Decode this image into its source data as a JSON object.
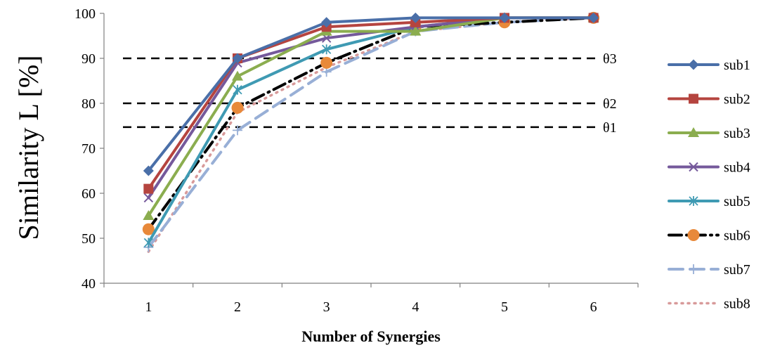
{
  "chart_data": {
    "type": "line",
    "ylabel": "Similarity L [%]",
    "xlabel": "Number of Synergies",
    "x": [
      1,
      2,
      3,
      4,
      5,
      6
    ],
    "xlim": [
      0.5,
      6.5
    ],
    "ylim": [
      40,
      100
    ],
    "yticks": [
      40,
      50,
      60,
      70,
      80,
      90,
      100
    ],
    "xticks": [
      "1",
      "2",
      "3",
      "4",
      "5",
      "6"
    ],
    "legend_position": "right",
    "grid": false,
    "thresholds": [
      {
        "label": "θ3",
        "value": 90
      },
      {
        "label": "θ2",
        "value": 80
      },
      {
        "label": "θ1",
        "value": 74.7
      }
    ],
    "series": [
      {
        "name": "sub1",
        "color": "#4a6fa8",
        "marker": "diamond",
        "line": "solid",
        "values": [
          65,
          90,
          98,
          99,
          99,
          99
        ]
      },
      {
        "name": "sub2",
        "color": "#b5443f",
        "marker": "square",
        "line": "solid",
        "values": [
          61,
          90,
          97,
          98,
          99,
          99
        ]
      },
      {
        "name": "sub3",
        "color": "#8bad4f",
        "marker": "triangle",
        "line": "solid",
        "values": [
          55,
          86,
          96,
          96,
          99,
          99
        ]
      },
      {
        "name": "sub4",
        "color": "#75599b",
        "marker": "x",
        "line": "solid",
        "values": [
          59,
          89,
          94.5,
          97,
          99,
          99
        ]
      },
      {
        "name": "sub5",
        "color": "#3f9ab3",
        "marker": "asterisk",
        "line": "solid",
        "values": [
          49,
          83,
          92,
          97,
          99,
          99
        ]
      },
      {
        "name": "sub6",
        "color": "#000000",
        "marker": "circle",
        "markerColor": "#e8893a",
        "line": "dashdot",
        "values": [
          52,
          79,
          89,
          97,
          98,
          99
        ]
      },
      {
        "name": "sub7",
        "color": "#98afd6",
        "marker": "plus",
        "line": "dashed",
        "values": [
          48,
          74,
          87,
          96,
          98,
          99
        ]
      },
      {
        "name": "sub8",
        "color": "#d89a9a",
        "marker": "none",
        "line": "dotted",
        "values": [
          47,
          78,
          88,
          96,
          98,
          99
        ]
      }
    ]
  }
}
